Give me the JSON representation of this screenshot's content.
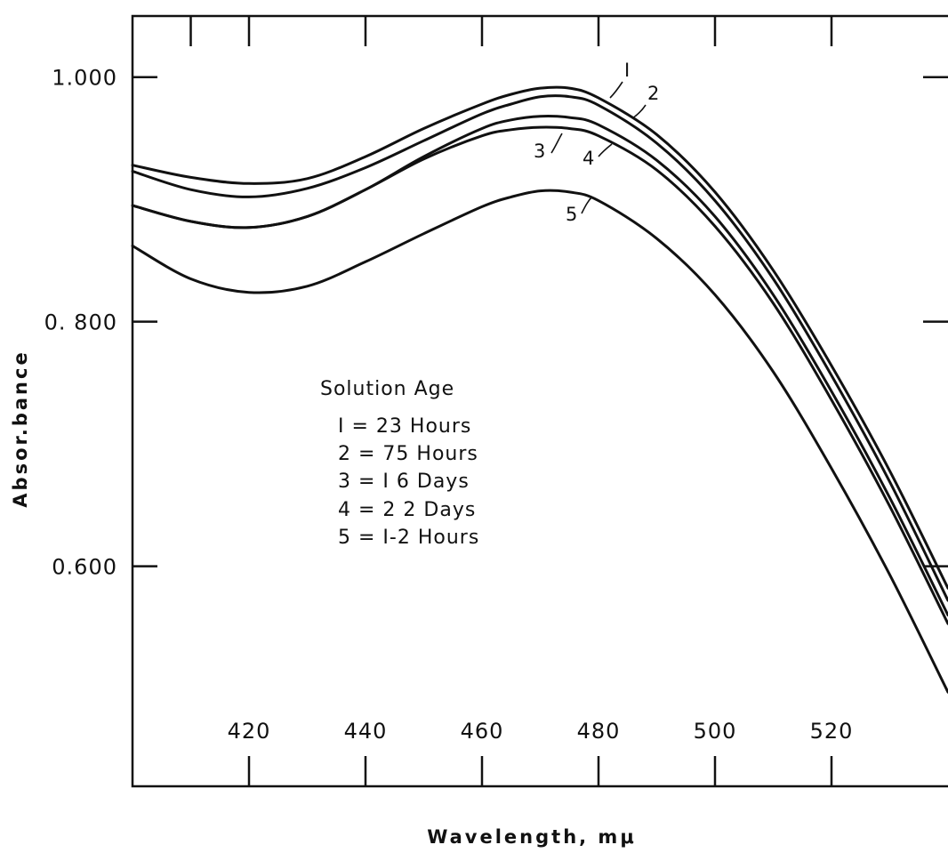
{
  "chart_data": {
    "type": "line",
    "title": "",
    "xlabel": "Wavelength, mμ",
    "ylabel": "Absor.bance",
    "xlim": [
      400,
      540
    ],
    "ylim": [
      0.42,
      1.05
    ],
    "x_ticks": [
      420,
      440,
      460,
      480,
      500,
      520
    ],
    "x_tick_labels": [
      "420",
      "440",
      "460",
      "480",
      "500",
      "520"
    ],
    "y_ticks": [
      0.6,
      0.8,
      1.0
    ],
    "y_tick_labels": [
      "0.600",
      "0. 800",
      "1.000"
    ],
    "grid": false,
    "legend": {
      "title": "Solution Age",
      "entries": [
        "I = 23 Hours",
        "2 = 75 Hours",
        "3 = I 6 Days",
        "4 = 2 2 Days",
        "5 = I-2 Hours"
      ]
    },
    "x": [
      400,
      410,
      420,
      430,
      440,
      450,
      460,
      465,
      470,
      475,
      480,
      490,
      500,
      510,
      520,
      530,
      540
    ],
    "series": [
      {
        "label": "I",
        "values": [
          0.928,
          0.918,
          0.913,
          0.917,
          0.935,
          0.958,
          0.978,
          0.986,
          0.991,
          0.991,
          0.983,
          0.953,
          0.906,
          0.842,
          0.764,
          0.678,
          0.582
        ]
      },
      {
        "label": "2",
        "values": [
          0.923,
          0.908,
          0.902,
          0.909,
          0.926,
          0.948,
          0.97,
          0.978,
          0.984,
          0.984,
          0.977,
          0.946,
          0.899,
          0.835,
          0.756,
          0.669,
          0.572
        ]
      },
      {
        "label": "3",
        "values": [
          0.895,
          0.882,
          0.877,
          0.886,
          0.908,
          0.935,
          0.958,
          0.965,
          0.968,
          0.967,
          0.961,
          0.932,
          0.886,
          0.822,
          0.743,
          0.656,
          0.56
        ]
      },
      {
        "label": "4",
        "values": [
          0.895,
          0.882,
          0.877,
          0.886,
          0.908,
          0.933,
          0.952,
          0.957,
          0.959,
          0.958,
          0.952,
          0.924,
          0.878,
          0.815,
          0.736,
          0.649,
          0.553
        ]
      },
      {
        "label": "5",
        "values": [
          0.862,
          0.835,
          0.824,
          0.829,
          0.849,
          0.872,
          0.894,
          0.902,
          0.907,
          0.906,
          0.899,
          0.868,
          0.822,
          0.759,
          0.68,
          0.593,
          0.497
        ]
      }
    ]
  }
}
